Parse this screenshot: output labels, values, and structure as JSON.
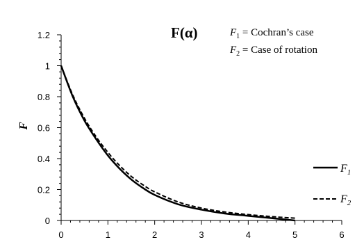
{
  "chart_data": {
    "type": "line",
    "title": "F(α)",
    "xlabel": "",
    "ylabel": "F",
    "xlim": [
      0,
      6
    ],
    "ylim": [
      0,
      1.2
    ],
    "xticks": [
      "0",
      "1",
      "2",
      "3",
      "4",
      "5",
      "6"
    ],
    "yticks": [
      "0",
      "0.2",
      "0.4",
      "0.6",
      "0.8",
      "1",
      "1.2"
    ],
    "grid": false,
    "legend_position": "right",
    "annotations": [
      {
        "main": "F",
        "sub": "1",
        "rest": " = Cochran’s case"
      },
      {
        "main": "F",
        "sub": "2",
        "rest": " = Case of rotation"
      }
    ],
    "series": [
      {
        "name": "F1",
        "legend_main": "F",
        "legend_sub": "1",
        "style": "solid",
        "color": "#000000",
        "x": [
          0,
          0.25,
          0.5,
          0.75,
          1,
          1.25,
          1.5,
          1.75,
          2,
          2.5,
          3,
          3.5,
          4,
          4.5,
          5
        ],
        "y": [
          1.0,
          0.8,
          0.645,
          0.525,
          0.42,
          0.335,
          0.265,
          0.21,
          0.165,
          0.105,
          0.07,
          0.045,
          0.03,
          0.015,
          0.0
        ]
      },
      {
        "name": "F2",
        "legend_main": "F",
        "legend_sub": "2",
        "style": "dashed",
        "color": "#000000",
        "x": [
          0,
          0.25,
          0.5,
          0.75,
          1,
          1.25,
          1.5,
          1.75,
          2,
          2.5,
          3,
          3.5,
          4,
          4.5,
          5
        ],
        "y": [
          1.0,
          0.81,
          0.66,
          0.54,
          0.44,
          0.355,
          0.285,
          0.23,
          0.185,
          0.12,
          0.08,
          0.055,
          0.038,
          0.025,
          0.015
        ]
      }
    ]
  }
}
